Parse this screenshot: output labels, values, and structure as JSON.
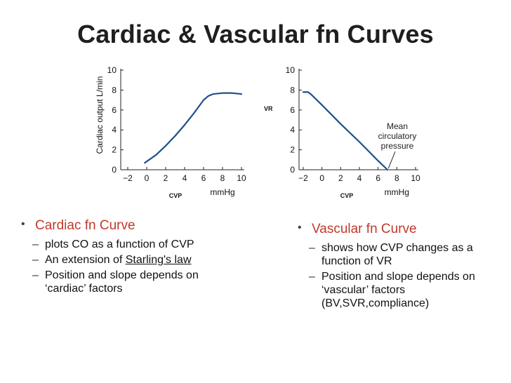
{
  "slide": {
    "title": "Cardiac & Vascular fn Curves"
  },
  "left_col": {
    "heading": "Cardiac fn Curve",
    "items": [
      {
        "before": "plots CO as a function of CVP",
        "link": "",
        "after": ""
      },
      {
        "before": "An extension of ",
        "link": "Starling's law",
        "after": ""
      },
      {
        "before": "Position and slope depends on ‘cardiac’ factors",
        "link": "",
        "after": ""
      }
    ]
  },
  "right_col": {
    "heading": "Vascular fn Curve",
    "items": [
      {
        "before": "shows how CVP changes as a function of VR"
      },
      {
        "before": "Position and slope depends on ‘vascular’ factors (BV,SVR,compliance)"
      }
    ]
  },
  "chart_data": [
    {
      "type": "line",
      "ylabel": "Cardiac output L/min",
      "xlabel_left": "CVP",
      "xlabel_right": "mmHg",
      "xlim": [
        -2,
        10
      ],
      "ylim": [
        0,
        10
      ],
      "xticks": [
        "-2",
        "0",
        "2",
        "4",
        "6",
        "8",
        "10"
      ],
      "yticks": [
        "0",
        "2",
        "4",
        "6",
        "8",
        "10"
      ],
      "grid": false,
      "series": [
        {
          "x": [
            -0.2,
            1,
            2,
            3,
            4,
            5,
            6,
            6.5,
            7,
            8,
            9,
            10
          ],
          "y": [
            0.7,
            1.5,
            2.4,
            3.4,
            4.5,
            5.7,
            7.0,
            7.4,
            7.6,
            7.7,
            7.7,
            7.6
          ]
        }
      ]
    },
    {
      "type": "line",
      "ylabel": "VR",
      "xlabel_left": "CVP",
      "xlabel_right": "mmHg",
      "xlim": [
        -2,
        10
      ],
      "ylim": [
        0,
        10
      ],
      "xticks": [
        "-2",
        "0",
        "2",
        "4",
        "6",
        "8",
        "10"
      ],
      "yticks": [
        "0",
        "2",
        "4",
        "6",
        "8",
        "10"
      ],
      "grid": false,
      "annotation": "Mean\ncirculatory\npressure",
      "series": [
        {
          "x": [
            -2,
            -1.5,
            -1.2,
            0,
            2,
            4,
            6,
            7
          ],
          "y": [
            7.8,
            7.8,
            7.6,
            6.5,
            4.6,
            2.8,
            0.9,
            0
          ]
        }
      ]
    }
  ]
}
